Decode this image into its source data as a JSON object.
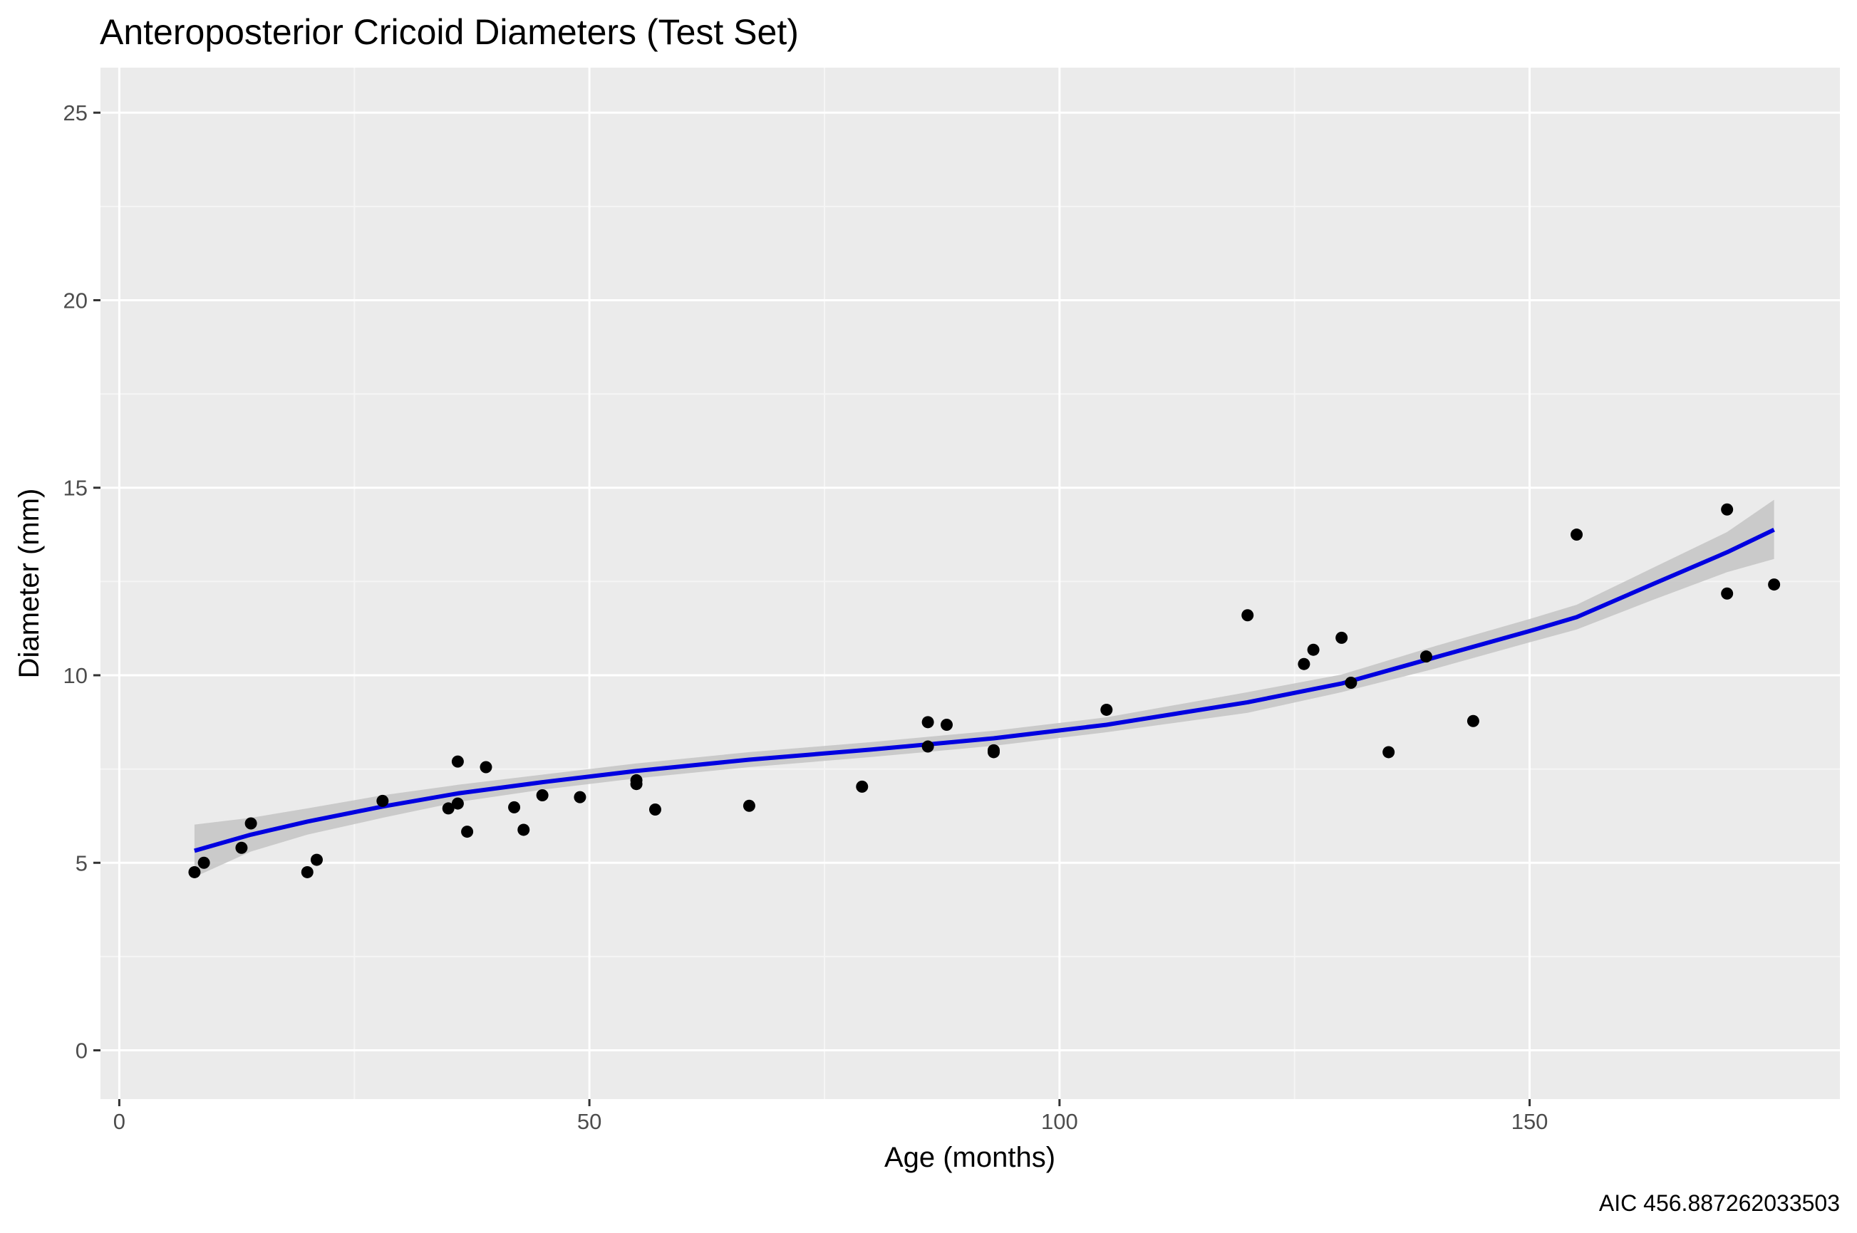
{
  "chart_data": {
    "type": "scatter",
    "title": "Anteroposterior Cricoid Diameters (Test Set)",
    "xlabel": "Age (months)",
    "ylabel": "Diameter (mm)",
    "caption": "AIC 456.887262033503",
    "xlim": [
      -2,
      183
    ],
    "ylim": [
      -1.3,
      26.2
    ],
    "x_ticks": [
      0,
      50,
      100,
      150
    ],
    "x_tick_labels": [
      "0",
      "50",
      "100",
      "150"
    ],
    "y_ticks": [
      0,
      5,
      10,
      15,
      20,
      25
    ],
    "y_tick_labels": [
      "0",
      "5",
      "10",
      "15",
      "20",
      "25"
    ],
    "grid": true,
    "legend": "none",
    "colors": {
      "panel_background": "#ebebeb",
      "grid_major": "#ffffff",
      "grid_minor": "#f5f5f5",
      "points": "#000000",
      "fit_line": "#0000e0",
      "confidence_band": "#c4c4c4",
      "tick_marks": "#333333"
    },
    "points": [
      {
        "x": 8,
        "y": 4.75
      },
      {
        "x": 9,
        "y": 5.0
      },
      {
        "x": 13,
        "y": 5.4
      },
      {
        "x": 14,
        "y": 6.05
      },
      {
        "x": 20,
        "y": 4.75
      },
      {
        "x": 21,
        "y": 5.08
      },
      {
        "x": 28,
        "y": 6.65
      },
      {
        "x": 35,
        "y": 6.45
      },
      {
        "x": 36,
        "y": 7.7
      },
      {
        "x": 36,
        "y": 6.58
      },
      {
        "x": 37,
        "y": 5.83
      },
      {
        "x": 39,
        "y": 7.55
      },
      {
        "x": 42,
        "y": 6.48
      },
      {
        "x": 43,
        "y": 5.88
      },
      {
        "x": 45,
        "y": 6.8
      },
      {
        "x": 49,
        "y": 6.75
      },
      {
        "x": 55,
        "y": 7.2
      },
      {
        "x": 55,
        "y": 7.1
      },
      {
        "x": 57,
        "y": 6.42
      },
      {
        "x": 67,
        "y": 6.52
      },
      {
        "x": 79,
        "y": 7.03
      },
      {
        "x": 86,
        "y": 8.75
      },
      {
        "x": 86,
        "y": 8.1
      },
      {
        "x": 88,
        "y": 8.68
      },
      {
        "x": 93,
        "y": 8.0
      },
      {
        "x": 93,
        "y": 7.95
      },
      {
        "x": 105,
        "y": 9.08
      },
      {
        "x": 120,
        "y": 11.6
      },
      {
        "x": 126,
        "y": 10.3
      },
      {
        "x": 127,
        "y": 10.68
      },
      {
        "x": 130,
        "y": 11.0
      },
      {
        "x": 131,
        "y": 9.8
      },
      {
        "x": 135,
        "y": 7.95
      },
      {
        "x": 139,
        "y": 10.5
      },
      {
        "x": 144,
        "y": 8.78
      },
      {
        "x": 155,
        "y": 13.75
      },
      {
        "x": 171,
        "y": 14.42
      },
      {
        "x": 171,
        "y": 12.18
      },
      {
        "x": 176,
        "y": 12.42
      }
    ],
    "fit": {
      "x": [
        8,
        14,
        20,
        28,
        36,
        45,
        55,
        67,
        80,
        93,
        105,
        120,
        130,
        140,
        150,
        155,
        163,
        171,
        176
      ],
      "y": [
        5.32,
        5.75,
        6.1,
        6.5,
        6.85,
        7.15,
        7.45,
        7.75,
        8.02,
        8.32,
        8.68,
        9.28,
        9.78,
        10.48,
        11.18,
        11.55,
        12.42,
        13.28,
        13.88
      ],
      "lower": [
        4.62,
        5.3,
        5.75,
        6.2,
        6.62,
        6.95,
        7.25,
        7.55,
        7.82,
        8.12,
        8.48,
        9.0,
        9.55,
        10.18,
        10.88,
        11.22,
        12.0,
        12.75,
        13.1
      ],
      "upper": [
        6.02,
        6.2,
        6.45,
        6.8,
        7.08,
        7.35,
        7.65,
        7.95,
        8.22,
        8.52,
        8.88,
        9.55,
        10.02,
        10.78,
        11.5,
        11.88,
        12.85,
        13.82,
        14.68
      ]
    }
  }
}
